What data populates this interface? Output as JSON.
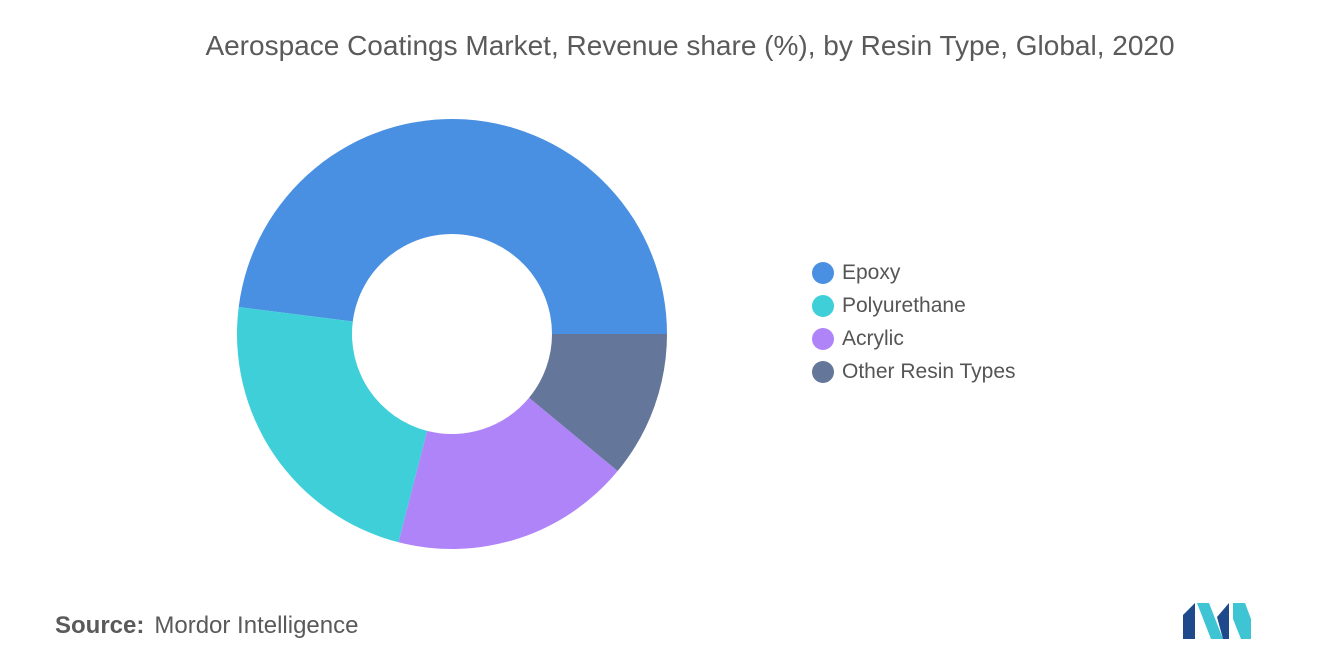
{
  "chart_data": {
    "type": "pie",
    "donut": true,
    "title": "Aerospace Coatings Market, Revenue share (%), by Resin Type, Global, 2020",
    "categories": [
      "Epoxy",
      "Polyurethane",
      "Acrylic",
      "Other Resin Types"
    ],
    "values": [
      48,
      23,
      18,
      11
    ],
    "colors": [
      "#4A90E2",
      "#3ECFD9",
      "#B084F9",
      "#64779A"
    ],
    "legend_position": "right",
    "data_labels": false
  },
  "source": {
    "label": "Source:",
    "text": "Mordor Intelligence"
  },
  "logo": {
    "icon": "mordor-intelligence-logo",
    "colors": [
      "#1E4A8C",
      "#3EC4D3"
    ]
  }
}
